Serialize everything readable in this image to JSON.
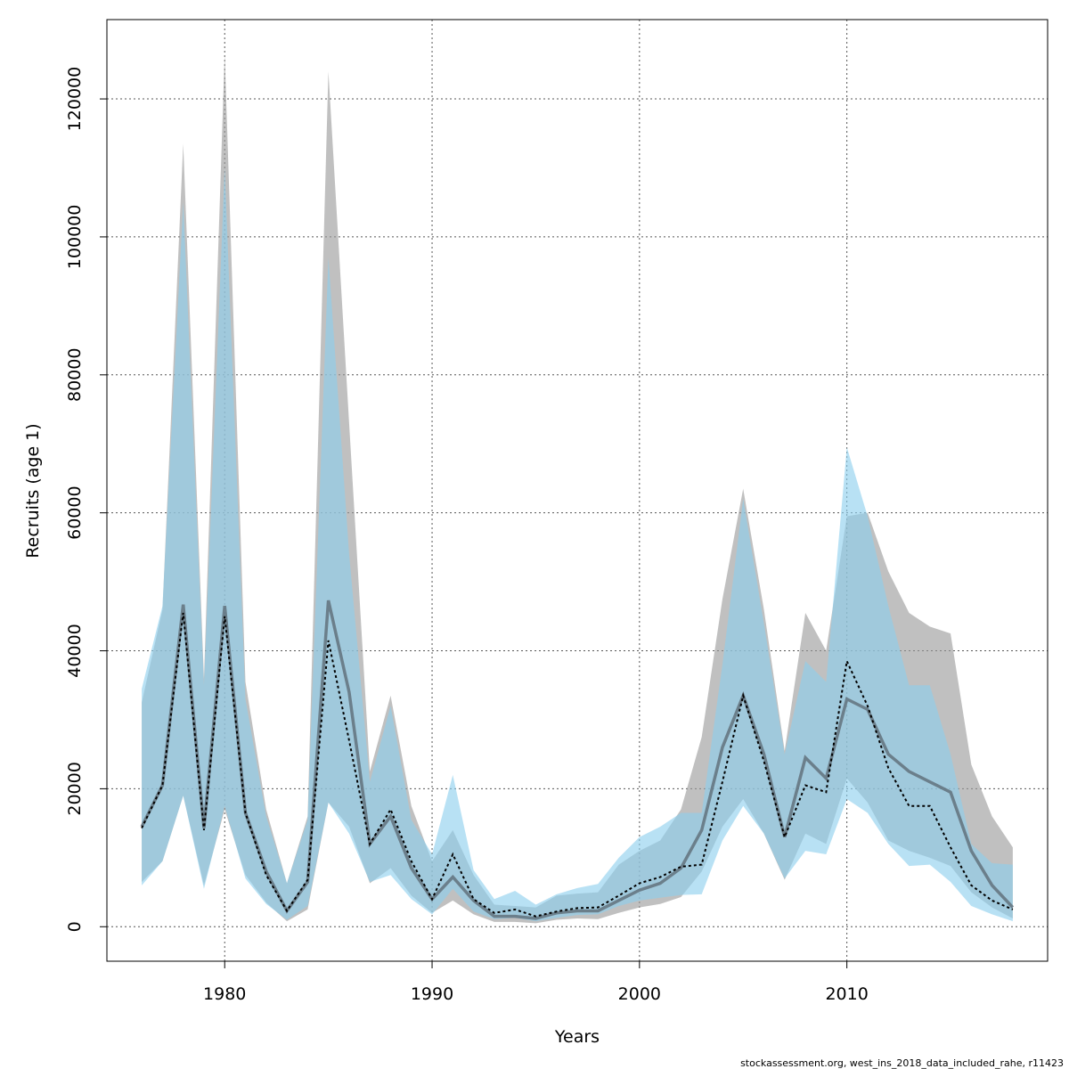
{
  "chart_data": {
    "type": "band-line",
    "x_label": "Years",
    "y_label": "Recruits (age 1)",
    "footer": "stockassessment.org, west_ins_2018_data_included_rahe, r11423",
    "x": [
      1976,
      1977,
      1978,
      1979,
      1980,
      1981,
      1982,
      1983,
      1984,
      1985,
      1986,
      1987,
      1988,
      1989,
      1990,
      1991,
      1992,
      1993,
      1994,
      1995,
      1996,
      1997,
      1998,
      1999,
      2000,
      2001,
      2002,
      2003,
      2004,
      2005,
      2006,
      2007,
      2008,
      2009,
      2010,
      2011,
      2012,
      2013,
      2014,
      2015,
      2016,
      2017,
      2018
    ],
    "xlim": [
      1974.32,
      2019.68
    ],
    "xticks": [
      1980,
      1990,
      2000,
      2010
    ],
    "ylim": [
      -5000,
      131500
    ],
    "yticks": [
      0,
      20000,
      40000,
      60000,
      80000,
      100000,
      120000
    ],
    "grid": true,
    "series": [
      {
        "style": "band",
        "color": "#9a9a9a",
        "upper": [
          32500,
          46000,
          113500,
          36000,
          126500,
          35500,
          17000,
          6300,
          16000,
          124000,
          73000,
          22500,
          33500,
          17500,
          9500,
          14000,
          7500,
          3200,
          3000,
          2800,
          4500,
          4800,
          5000,
          9000,
          11000,
          12500,
          17000,
          27500,
          47500,
          63500,
          46000,
          25500,
          45500,
          40000,
          59500,
          60000,
          51500,
          45500,
          43500,
          42500,
          23500,
          16000,
          11500
        ],
        "lower": [
          6500,
          9500,
          19000,
          6000,
          17000,
          7500,
          3500,
          800,
          2500,
          18000,
          14500,
          6300,
          8500,
          4500,
          2000,
          3800,
          1800,
          700,
          700,
          500,
          1000,
          1200,
          1100,
          2000,
          2800,
          3300,
          4300,
          8000,
          14500,
          18500,
          13500,
          6800,
          13500,
          12000,
          21500,
          18000,
          12500,
          11000,
          10000,
          8800,
          5000,
          2800,
          1200
        ]
      },
      {
        "style": "band",
        "color": "#8ccfee",
        "upper": [
          34500,
          46500,
          105000,
          35000,
          110000,
          33000,
          16000,
          6300,
          15500,
          97000,
          54000,
          21000,
          32000,
          15500,
          10500,
          22000,
          8200,
          4000,
          5200,
          3200,
          4700,
          5600,
          6200,
          10000,
          13000,
          14500,
          16500,
          16500,
          38000,
          62000,
          44000,
          25000,
          38500,
          35500,
          69500,
          59500,
          46500,
          35000,
          35000,
          25000,
          12000,
          9200,
          9000
        ],
        "lower": [
          6000,
          9500,
          19000,
          5500,
          17500,
          7000,
          3300,
          1000,
          3000,
          18000,
          13500,
          6500,
          7500,
          4000,
          1800,
          5500,
          2200,
          1100,
          1300,
          800,
          1300,
          1700,
          1800,
          3000,
          3800,
          4200,
          4600,
          4700,
          12500,
          17500,
          13500,
          7000,
          11000,
          10500,
          18500,
          16500,
          12000,
          8800,
          9000,
          6500,
          3000,
          1800,
          800
        ]
      },
      {
        "style": "solid",
        "color": "#5a6670",
        "values": [
          14500,
          20500,
          46700,
          14300,
          46500,
          16500,
          8000,
          2300,
          6500,
          47300,
          34000,
          12000,
          16000,
          8500,
          4000,
          7200,
          3800,
          1500,
          1500,
          1200,
          2000,
          2300,
          2300,
          3800,
          5300,
          6300,
          8500,
          14000,
          26000,
          33500,
          25000,
          13000,
          24500,
          21500,
          33000,
          31500,
          25000,
          22500,
          21000,
          19500,
          11000,
          6000,
          2800
        ]
      },
      {
        "style": "dotted",
        "color": "#000000",
        "values": [
          14300,
          20500,
          45500,
          14000,
          45000,
          16500,
          7500,
          2300,
          6800,
          41500,
          27000,
          12000,
          17000,
          9500,
          4000,
          10500,
          4000,
          2000,
          2500,
          1500,
          2200,
          2700,
          2800,
          4500,
          6300,
          7200,
          8700,
          9000,
          21000,
          33500,
          24000,
          13000,
          20500,
          19500,
          38500,
          32000,
          23000,
          17500,
          17500,
          11500,
          6000,
          3800,
          2500
        ]
      }
    ]
  }
}
